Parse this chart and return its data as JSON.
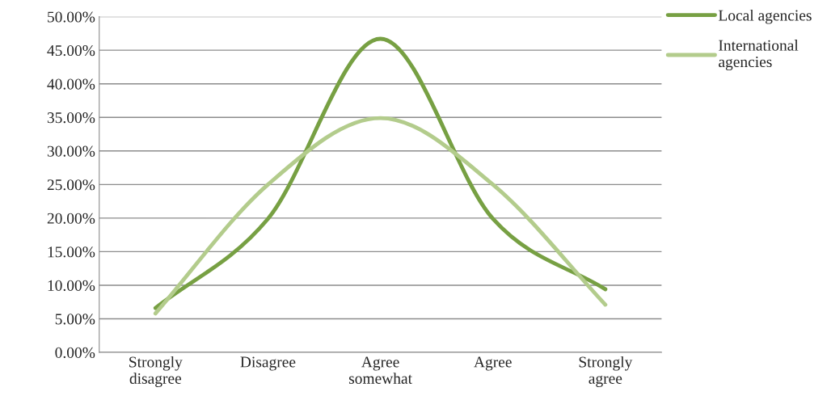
{
  "chart_data": {
    "type": "line",
    "categories": [
      "Strongly\ndisagree",
      "Disagree",
      "Agree\nsomewhat",
      "Agree",
      "Strongly\nagree"
    ],
    "series": [
      {
        "name": "Local agencies",
        "color": "#77a043",
        "values": [
          6.6,
          19.9,
          46.7,
          19.9,
          9.4
        ]
      },
      {
        "name": "International\nagencies",
        "color": "#b3cc8c",
        "values": [
          5.8,
          25.0,
          34.9,
          25.0,
          7.1
        ]
      }
    ],
    "ylim": [
      0,
      50
    ],
    "yticks": [
      {
        "value": 0,
        "label": "0.00%"
      },
      {
        "value": 5,
        "label": "5.00%"
      },
      {
        "value": 10,
        "label": "10.00%"
      },
      {
        "value": 15,
        "label": "15.00%"
      },
      {
        "value": 20,
        "label": "20.00%"
      },
      {
        "value": 25,
        "label": "25.00%"
      },
      {
        "value": 30,
        "label": "30.00%"
      },
      {
        "value": 35,
        "label": "35.00%"
      },
      {
        "value": 40,
        "label": "40.00%"
      },
      {
        "value": 45,
        "label": "45.00%"
      },
      {
        "value": 50,
        "label": "50.00%"
      }
    ],
    "grid": "y",
    "legend": "right",
    "marker": "none",
    "line_style": "solid"
  }
}
